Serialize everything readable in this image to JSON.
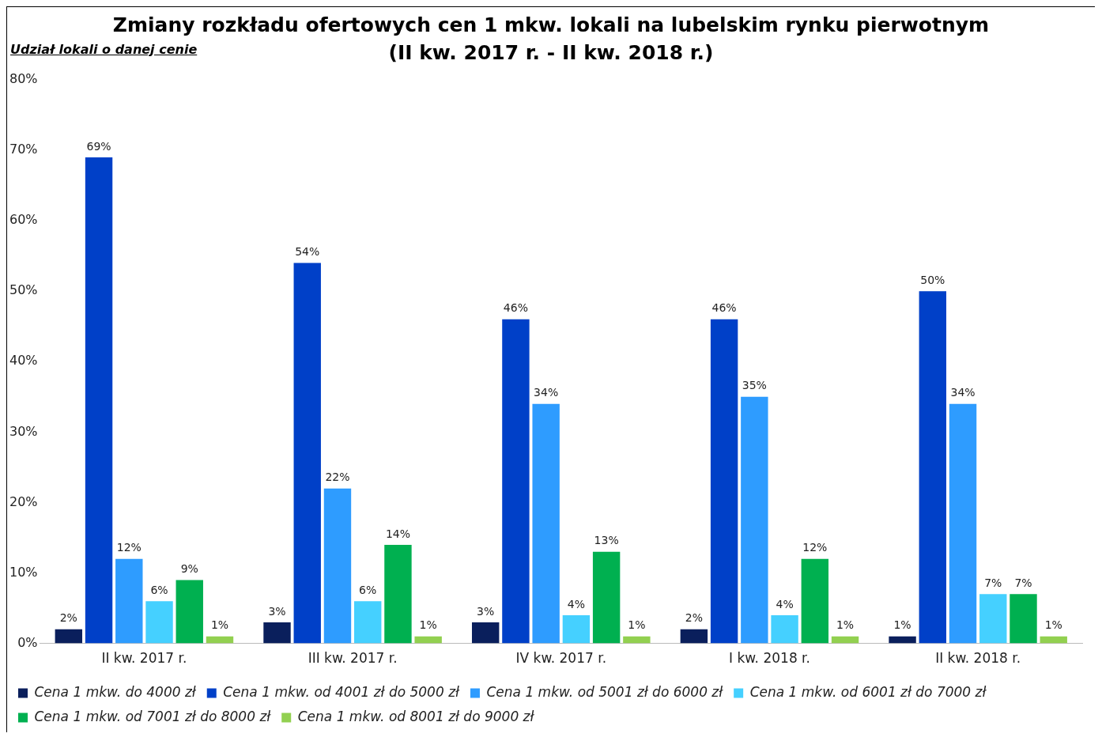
{
  "chart_data": {
    "type": "bar",
    "title": "Zmiany rozkładu ofertowych cen 1 mkw. lokali na lubelskim rynku pierwotnym",
    "subtitle": "(II kw. 2017 r. - II kw. 2018 r.)",
    "ylabel": "Udział lokali o danej cenie",
    "categories": [
      "II kw. 2017 r.",
      "III kw. 2017 r.",
      "IV kw. 2017 r.",
      "I kw. 2018 r.",
      "II kw. 2018 r."
    ],
    "series": [
      {
        "name": "Cena 1 mkw. do 4000 zł",
        "color": "#0a1f5c",
        "values": [
          2,
          3,
          3,
          2,
          1
        ],
        "value_labels": [
          "2%",
          "3%",
          "3%",
          "2%",
          "1%"
        ]
      },
      {
        "name": "Cena 1 mkw. od 4001 zł do 5000 zł",
        "color": "#0040c8",
        "values": [
          69,
          54,
          46,
          46,
          50
        ],
        "value_labels": [
          "69%",
          "54%",
          "46%",
          "46%",
          "50%"
        ]
      },
      {
        "name": "Cena 1 mkw. od 5001 zł do 6000 zł",
        "color": "#2e9cff",
        "values": [
          12,
          22,
          34,
          35,
          34
        ],
        "value_labels": [
          "12%",
          "22%",
          "34%",
          "35%",
          "34%"
        ]
      },
      {
        "name": "Cena 1 mkw. od 6001 zł do 7000 zł",
        "color": "#45d0ff",
        "values": [
          6,
          6,
          4,
          4,
          7
        ],
        "value_labels": [
          "6%",
          "6%",
          "4%",
          "4%",
          "7%"
        ]
      },
      {
        "name": "Cena 1 mkw. od 7001 zł do 8000 zł",
        "color": "#00b050",
        "values": [
          9,
          14,
          13,
          12,
          7
        ],
        "value_labels": [
          "9%",
          "14%",
          "13%",
          "12%",
          "7%"
        ]
      },
      {
        "name": "Cena 1 mkw. od 8001 zł do 9000 zł",
        "color": "#92d050",
        "values": [
          1,
          1,
          1,
          1,
          1
        ],
        "value_labels": [
          "1%",
          "1%",
          "1%",
          "1%",
          "1%"
        ]
      }
    ],
    "ylim": [
      0,
      80
    ],
    "yticks": [
      {
        "value": 0,
        "label": "0%"
      },
      {
        "value": 10,
        "label": "10%"
      },
      {
        "value": 20,
        "label": "20%"
      },
      {
        "value": 30,
        "label": "30%"
      },
      {
        "value": 40,
        "label": "40%"
      },
      {
        "value": 50,
        "label": "50%"
      },
      {
        "value": 60,
        "label": "60%"
      },
      {
        "value": 70,
        "label": "70%"
      },
      {
        "value": 80,
        "label": "80%"
      }
    ],
    "grid": false,
    "legend": "bottom"
  }
}
